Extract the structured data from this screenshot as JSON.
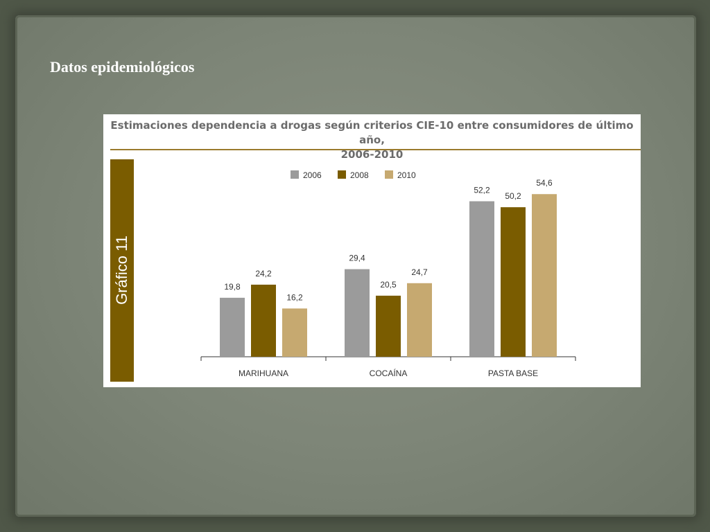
{
  "slide": {
    "title": "Datos epidemiológicos"
  },
  "chart_data": {
    "type": "bar",
    "title": "Estimaciones dependencia a drogas según criterios CIE-10 entre consumidores de último año, 2006-2010",
    "title_lines": [
      "Estimaciones dependencia a drogas según criterios CIE-10 entre consumidores de último año,",
      "2006-2010"
    ],
    "side_label": "Gráfico 11",
    "categories": [
      "MARIHUANA",
      "COCAÍNA",
      "PASTA BASE"
    ],
    "series": [
      {
        "name": "2006",
        "values": [
          19.8,
          29.4,
          52.2
        ],
        "labels": [
          "19,8",
          "29,4",
          "52,2"
        ],
        "color": "#9b9b9b"
      },
      {
        "name": "2008",
        "values": [
          24.2,
          20.5,
          50.2
        ],
        "labels": [
          "24,2",
          "20,5",
          "50,2"
        ],
        "color": "#7a5c00"
      },
      {
        "name": "2010",
        "values": [
          16.2,
          24.7,
          54.6
        ],
        "labels": [
          "16,2",
          "24,7",
          "54,6"
        ],
        "color": "#c6a970"
      }
    ],
    "ylim": [
      0,
      56
    ],
    "legend": "top-center",
    "grid": false,
    "xlabel": "",
    "ylabel": ""
  }
}
